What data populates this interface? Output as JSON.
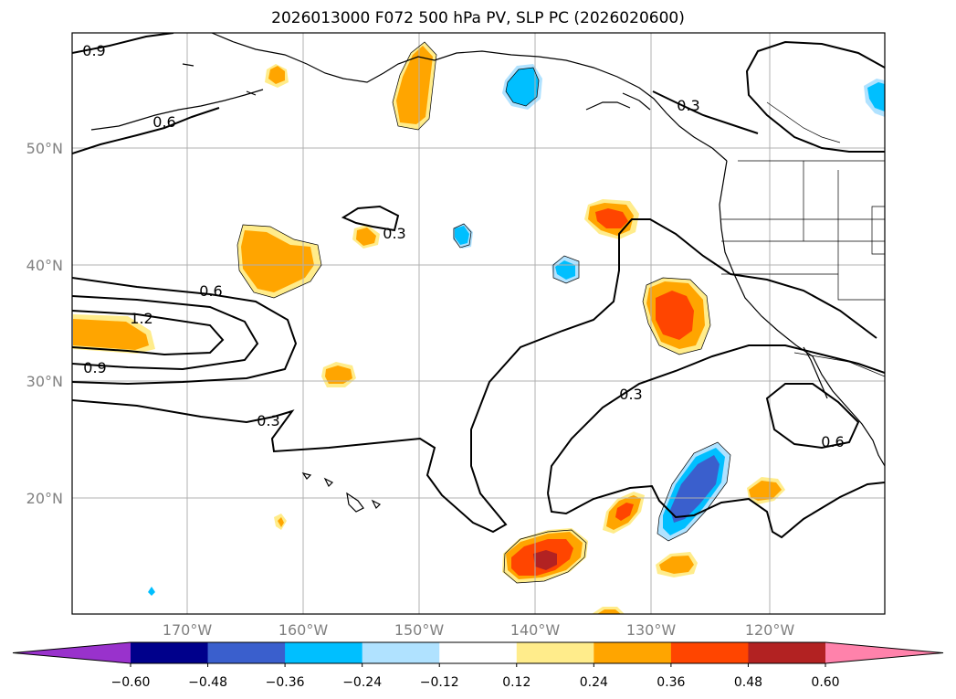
{
  "title": "2026013000 F072 500 hPa PV, SLP PC (2026020600)",
  "lat_ticks": [
    "50°N",
    "40°N",
    "30°N",
    "20°N"
  ],
  "lon_ticks": [
    "170°W",
    "160°W",
    "150°W",
    "140°W",
    "130°W",
    "120°W"
  ],
  "contour_labels": [
    "0.9",
    "0.6",
    "1.2",
    "0.6",
    "0.9",
    "0.3",
    "0.3",
    "0.3",
    "0.3",
    "0.6"
  ],
  "colorbar": {
    "ticks": [
      "−0.60",
      "−0.48",
      "−0.36",
      "−0.24",
      "−0.12",
      "0.12",
      "0.24",
      "0.36",
      "0.48",
      "0.60"
    ],
    "colors": [
      "#9932cc",
      "#00008b",
      "#3a5fcd",
      "#00bfff",
      "#b0e2ff",
      "#ffffff",
      "#ffec8b",
      "#ffa500",
      "#ff4500",
      "#b22222",
      "#ff82ab"
    ]
  },
  "chart_data": {
    "type": "map",
    "title": "2026013000 F072 500 hPa PV, SLP PC (2026020600)",
    "lon_range": [
      -180,
      -110
    ],
    "lat_range": [
      10,
      60
    ],
    "fill_field": "500 hPa PV anomaly",
    "contour_field": "SLP PC",
    "contour_levels": [
      0.3,
      0.6,
      0.9,
      1.2
    ],
    "colorbar_levels": [
      -0.6,
      -0.48,
      -0.36,
      -0.24,
      -0.12,
      0.12,
      0.24,
      0.36,
      0.48,
      0.6
    ]
  }
}
